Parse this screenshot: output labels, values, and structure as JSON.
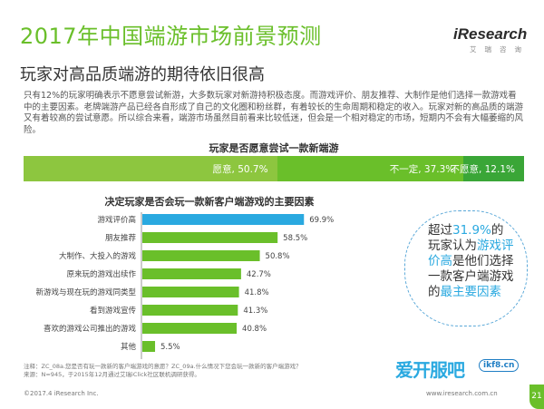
{
  "header": {
    "title": "2017年中国端游市场前景预测",
    "subtitle": "玩家对高品质端游的期待依旧很高",
    "logo_text": "iResearch",
    "logo_sub": "艾瑞咨询"
  },
  "body_text": "只有12%的玩家明确表示不愿意尝试新游，大多数玩家对新游持积极态度。而游戏评价、朋友推荐、大制作是他们选择一款游戏看中的主要因素。老牌端游产品已经各自形成了自己的文化圈和粉丝群，有着较长的生命周期和稳定的收入。玩家对新的高品质的端游又有着较高的尝试意愿。所以综合来看，端游市场虽然目前看来比较低迷，但会是一个相对稳定的市场，短期内不会有大幅萎缩的风险。",
  "chart_data": [
    {
      "type": "bar",
      "orientation": "horizontal-stacked",
      "title": "玩家是否愿意尝试一款新端游",
      "series": [
        {
          "name": "愿意",
          "value": 50.7,
          "label": "愿意, 50.7%"
        },
        {
          "name": "不一定",
          "value": 37.3,
          "label": "不一定, 37.3%"
        },
        {
          "name": "不愿意",
          "value": 12.1,
          "label": "不愿意, 12.1%"
        }
      ],
      "colors": [
        "#8dc63f",
        "#6abf2a",
        "#3aa637"
      ]
    },
    {
      "type": "bar",
      "orientation": "horizontal",
      "title": "决定玩家是否会玩一款新客户端游戏的主要因素",
      "categories": [
        "游戏评价高",
        "朋友推荐",
        "大制作、大投入的游戏",
        "原来玩的游戏出续作",
        "新游戏与现在玩的游戏同类型",
        "看到游戏宣传",
        "喜欢的游戏公司推出的游戏",
        "其他"
      ],
      "values": [
        69.9,
        58.5,
        50.8,
        42.7,
        41.8,
        41.3,
        40.8,
        5.5
      ],
      "value_labels": [
        "69.9%",
        "58.5%",
        "50.8%",
        "42.7%",
        "41.8%",
        "41.3%",
        "40.8%",
        "5.5%"
      ],
      "highlight_color": "#2aa9e0",
      "bar_color": "#6abf2a",
      "xlim": [
        0,
        100
      ]
    }
  ],
  "callout": {
    "prefix": "超过",
    "pct": "31.9%",
    "mid1": "的玩家认为",
    "hl1": "游戏评价高",
    "mid2": "是他们选择一款客户端游戏的",
    "hl2": "最主要因素"
  },
  "note_text": "注释：ZC_08a.您是否有玩一款新的客户端游戏的意愿？ZC_09a.什么情况下您会玩一款新的客户端游戏？",
  "source_text": "来源：N=945，于2015年12月通过艾瑞iClick社区联机调研获得。",
  "footer": {
    "left": "©2017.4 iResearch Inc.",
    "right": "www.iresearch.com.cn",
    "page": "21"
  },
  "watermark": {
    "text": "爱开服吧",
    "url": "ikf8.cn"
  }
}
